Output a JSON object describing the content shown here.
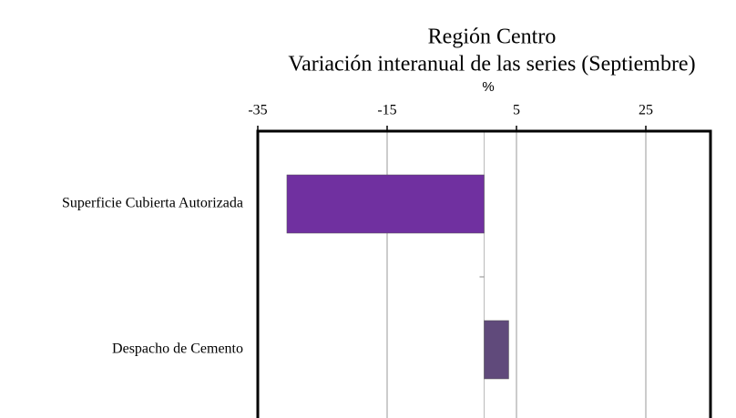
{
  "chart_data": {
    "type": "hbar",
    "title": "Región Centro",
    "subtitle": "Variación interanual de las series (Septiembre)",
    "x_label": "%",
    "categories": [
      "Superficie Cubierta Autorizada",
      "Despacho de Cemento"
    ],
    "values": [
      -30.5,
      3.8
    ],
    "colors": [
      "#7030a0",
      "#604a7b"
    ],
    "xlim": [
      -35,
      35
    ],
    "xticks": [
      -35,
      -15,
      5,
      25
    ],
    "grid": true
  }
}
